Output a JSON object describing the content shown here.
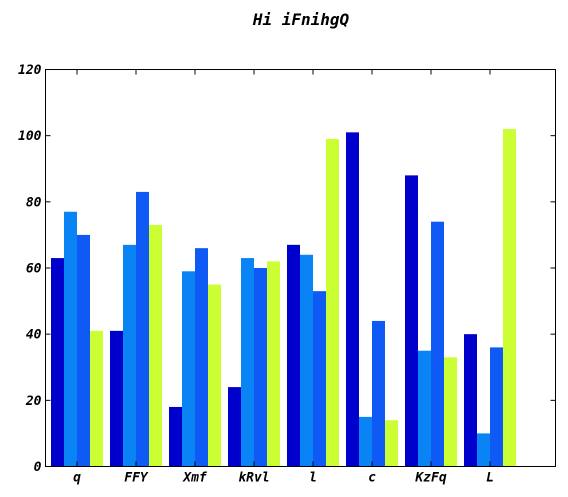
{
  "chart_data": {
    "type": "bar",
    "title": "Hi iFnihgQ",
    "xlabel": "",
    "ylabel": "",
    "ylim": [
      0,
      120
    ],
    "yticks": [
      0,
      20,
      40,
      60,
      80,
      100,
      120
    ],
    "grid": false,
    "legend": "none",
    "categories": [
      "q",
      "FFY",
      "Xmf",
      "kRvl",
      "l",
      "c",
      "KzFq",
      "L"
    ],
    "series": [
      {
        "color": "#0000cd",
        "values": [
          63,
          41,
          18,
          24,
          67,
          101,
          88,
          40
        ]
      },
      {
        "color": "#0a84f5",
        "values": [
          77,
          67,
          59,
          63,
          64,
          15,
          35,
          10
        ]
      },
      {
        "color": "#0f5af5",
        "values": [
          70,
          83,
          66,
          60,
          53,
          44,
          74,
          36
        ]
      },
      {
        "color": "#ccff33",
        "values": [
          41,
          73,
          55,
          62,
          99,
          14,
          33,
          102
        ]
      }
    ]
  }
}
